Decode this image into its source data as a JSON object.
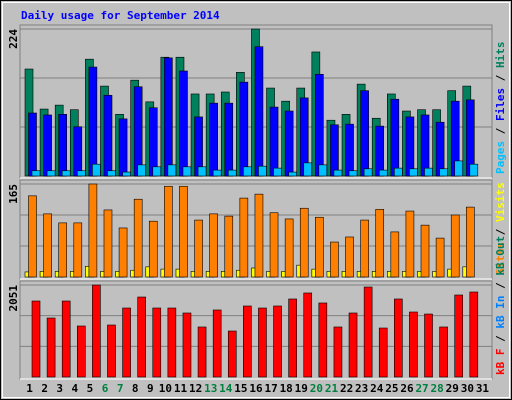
{
  "chart_data": {
    "type": "bar",
    "title": "Daily usage for September 2014",
    "categories": [
      "1",
      "2",
      "3",
      "4",
      "5",
      "6",
      "7",
      "8",
      "9",
      "10",
      "11",
      "12",
      "13",
      "14",
      "15",
      "16",
      "17",
      "18",
      "19",
      "20",
      "21",
      "22",
      "23",
      "24",
      "25",
      "26",
      "27",
      "28",
      "29",
      "30",
      "31"
    ],
    "category_colors": [
      "#000000",
      "#000000",
      "#000000",
      "#000000",
      "#000000",
      "#007f3f",
      "#007f3f",
      "#000000",
      "#000000",
      "#000000",
      "#000000",
      "#000000",
      "#007f3f",
      "#007f3f",
      "#000000",
      "#000000",
      "#000000",
      "#000000",
      "#000000",
      "#007f3f",
      "#007f3f",
      "#000000",
      "#000000",
      "#000000",
      "#000000",
      "#000000",
      "#007f3f",
      "#007f3f",
      "#000000",
      "#000000",
      "#000000"
    ],
    "legend_separator": " / ",
    "panels": [
      {
        "ylim": [
          0,
          224
        ],
        "yticks": [
          224
        ],
        "series": [
          {
            "name": "Pages",
            "color": "#00c0ff",
            "values": [
              8,
              8,
              8,
              8,
              18,
              8,
              6,
              17,
              14,
              17,
              14,
              14,
              9,
              9,
              14,
              15,
              12,
              6,
              20,
              17,
              9,
              8,
              11,
              9,
              12,
              11,
              12,
              11,
              23,
              18,
              null
            ]
          },
          {
            "name": "Files",
            "color": "#0000ff",
            "values": [
              96,
              93,
              94,
              75,
              166,
              123,
              87,
              136,
              104,
              180,
              160,
              90,
              111,
              111,
              143,
              197,
              105,
              99,
              119,
              155,
              78,
              79,
              130,
              76,
              117,
              90,
              93,
              82,
              114,
              116,
              null
            ]
          },
          {
            "name": "Hits",
            "color": "#00805c",
            "values": [
              163,
              102,
              108,
              101,
              178,
              137,
              94,
              146,
              113,
              181,
              181,
              125,
              125,
              128,
              158,
              224,
              134,
              114,
              134,
              189,
              85,
              94,
              140,
              88,
              125,
              99,
              101,
              101,
              130,
              137,
              null
            ]
          }
        ]
      },
      {
        "ylim": [
          0,
          165
        ],
        "yticks": [
          165
        ],
        "series": [
          {
            "name": "Sites",
            "color": "#ff8000",
            "values": [
              144,
              112,
              96,
              96,
              165,
              119,
              87,
              138,
              99,
              161,
              161,
              101,
              112,
              108,
              140,
              147,
              114,
              103,
              122,
              106,
              62,
              71,
              101,
              120,
              80,
              117,
              92,
              69,
              110,
              124,
              null
            ]
          },
          {
            "name": "Visits",
            "color": "#ffff00",
            "values": [
              9,
              10,
              10,
              10,
              19,
              10,
              10,
              12,
              18,
              14,
              14,
              10,
              10,
              10,
              12,
              16,
              10,
              10,
              21,
              14,
              10,
              10,
              10,
              10,
              10,
              10,
              10,
              10,
              14,
              18,
              null
            ]
          }
        ]
      },
      {
        "ylim": [
          0,
          2051
        ],
        "yticks": [
          2051
        ],
        "series": [
          {
            "name": "kB F",
            "color": "#ff0000",
            "values": [
              1694,
              1315,
              1694,
              1137,
              2051,
              1159,
              1538,
              1783,
              1538,
              1538,
              1427,
              1115,
              1494,
              1025,
              1583,
              1538,
              1583,
              1739,
              1873,
              1650,
              1115,
              1427,
              2006,
              1092,
              1739,
              1449,
              1404,
              1115,
              1828,
              1895,
              null
            ]
          },
          {
            "name": "kB In",
            "color": "#0080ff"
          },
          {
            "name": "kB Out",
            "color": "#00805c"
          }
        ]
      }
    ]
  }
}
